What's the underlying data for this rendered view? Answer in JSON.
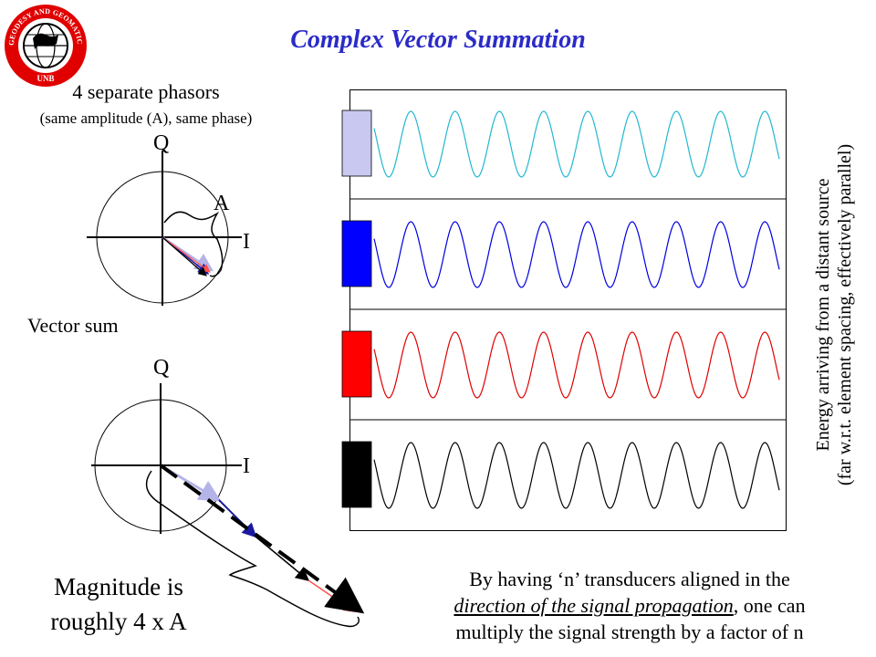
{
  "logo": {
    "ring_text": "GEODESY AND GEOMATICS ENGINEERING",
    "bottom_text": "UNB"
  },
  "title": "Complex Vector Summation",
  "top_panel": {
    "heading": "4 separate phasors",
    "subheading": "(same amplitude (A), same phase)",
    "axis_q": "Q",
    "axis_i": "I",
    "amplitude_label": "A"
  },
  "bottom_panel": {
    "heading": "Vector sum",
    "axis_q": "Q",
    "axis_i": "I",
    "magnitude_line1": "Magnitude is",
    "magnitude_line2": "roughly 4 x A"
  },
  "side_text": {
    "line1": "Energy arriving from a distant source",
    "line2": "(far w.r.t. element spacing, effectively parallel)"
  },
  "caption": {
    "line1": "By having ‘n’ transducers aligned in the",
    "line2_emphasis": "direction of the signal propagation",
    "line2_rest": ", one can",
    "line3": "multiply the signal strength by a factor of n"
  },
  "transducers": [
    {
      "color": "#c8c8f0",
      "wave_color": "#22b8d0"
    },
    {
      "color": "#0000ff",
      "wave_color": "#0000e0"
    },
    {
      "color": "#ff0000",
      "wave_color": "#e00000"
    },
    {
      "color": "#000000",
      "wave_color": "#000000"
    }
  ],
  "vectors": {
    "colors": [
      "#b4b4e8",
      "#1a1aa0",
      "#ff5050",
      "#000000"
    ]
  }
}
